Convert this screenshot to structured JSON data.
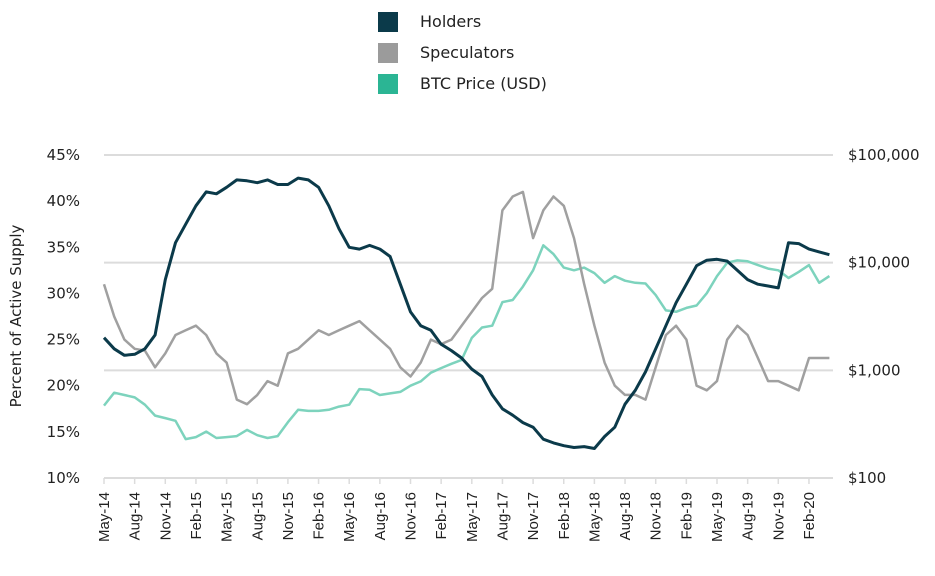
{
  "chart_data": {
    "type": "line",
    "title": "",
    "legend": {
      "placement": "top-center",
      "entries": [
        {
          "label": "Holders",
          "color": "#0b3a4a"
        },
        {
          "label": "Speculators",
          "color": "#9b9b9b"
        },
        {
          "label": "BTC Price (USD)",
          "color": "#2bb594"
        }
      ]
    },
    "xlabel": "",
    "ylabel": "Percent of Active Supply",
    "y2label": "",
    "x_tick_labels": [
      "May-14",
      "Aug-14",
      "Nov-14",
      "Feb-15",
      "May-15",
      "Aug-15",
      "Nov-15",
      "Feb-16",
      "May-16",
      "Aug-16",
      "Nov-16",
      "Feb-17",
      "May-17",
      "Aug-17",
      "Nov-17",
      "Feb-18",
      "May-18",
      "Aug-18",
      "Nov-18",
      "Feb-19",
      "May-19",
      "Aug-19",
      "Nov-19",
      "Feb-20"
    ],
    "y_tick_labels": [
      "10%",
      "15%",
      "20%",
      "25%",
      "30%",
      "35%",
      "40%",
      "45%"
    ],
    "y_ticks": [
      10,
      15,
      20,
      25,
      30,
      35,
      40,
      45
    ],
    "ylim": [
      10,
      45
    ],
    "y2_tick_labels": [
      "$100",
      "$1,000",
      "$10,000",
      "$100,000"
    ],
    "y2_ticks": [
      100,
      1000,
      10000,
      100000
    ],
    "y2lim": [
      100,
      100000
    ],
    "y2_scale": "log",
    "grid": "horizontal at right-axis ticks",
    "x_months": [
      "2014-05",
      "2014-06",
      "2014-07",
      "2014-08",
      "2014-09",
      "2014-10",
      "2014-11",
      "2014-12",
      "2015-01",
      "2015-02",
      "2015-03",
      "2015-04",
      "2015-05",
      "2015-06",
      "2015-07",
      "2015-08",
      "2015-09",
      "2015-10",
      "2015-11",
      "2015-12",
      "2016-01",
      "2016-02",
      "2016-03",
      "2016-04",
      "2016-05",
      "2016-06",
      "2016-07",
      "2016-08",
      "2016-09",
      "2016-10",
      "2016-11",
      "2016-12",
      "2017-01",
      "2017-02",
      "2017-03",
      "2017-04",
      "2017-05",
      "2017-06",
      "2017-07",
      "2017-08",
      "2017-09",
      "2017-10",
      "2017-11",
      "2017-12",
      "2018-01",
      "2018-02",
      "2018-03",
      "2018-04",
      "2018-05",
      "2018-06",
      "2018-07",
      "2018-08",
      "2018-09",
      "2018-10",
      "2018-11",
      "2018-12",
      "2019-01",
      "2019-02",
      "2019-03",
      "2019-04",
      "2019-05",
      "2019-06",
      "2019-07",
      "2019-08",
      "2019-09",
      "2019-10",
      "2019-11",
      "2019-12",
      "2020-01",
      "2020-02",
      "2020-03",
      "2020-04"
    ],
    "series": [
      {
        "name": "Holders",
        "axis": "left",
        "values": [
          25.2,
          24.0,
          23.3,
          23.4,
          24.0,
          25.5,
          31.5,
          35.5,
          37.5,
          39.5,
          41.0,
          40.8,
          41.5,
          42.3,
          42.2,
          42.0,
          42.3,
          41.8,
          41.8,
          42.5,
          42.3,
          41.5,
          39.5,
          37.0,
          35.0,
          34.8,
          35.2,
          34.8,
          34.0,
          31.0,
          28.0,
          26.5,
          26.0,
          24.5,
          23.8,
          23.0,
          21.8,
          21.0,
          19.0,
          17.5,
          16.8,
          16.0,
          15.5,
          14.2,
          13.8,
          13.5,
          13.3,
          13.4,
          13.2,
          14.5,
          15.5,
          18.0,
          19.5,
          21.5,
          24.0,
          26.5,
          29.0,
          31.0,
          33.0,
          33.6,
          33.7,
          33.5,
          32.5,
          31.5,
          31.0,
          30.8,
          30.6,
          35.5,
          35.4,
          34.8,
          34.5,
          34.2
        ]
      },
      {
        "name": "Speculators",
        "axis": "left",
        "values": [
          31.0,
          27.5,
          25.0,
          24.0,
          23.8,
          22.0,
          23.5,
          25.5,
          26.0,
          26.5,
          25.5,
          23.5,
          22.5,
          18.5,
          18.0,
          19.0,
          20.5,
          20.0,
          23.5,
          24.0,
          25.0,
          26.0,
          25.5,
          26.0,
          26.5,
          27.0,
          26.0,
          25.0,
          24.0,
          22.0,
          21.0,
          22.5,
          25.0,
          24.5,
          25.0,
          26.5,
          28.0,
          29.5,
          30.5,
          39.0,
          40.5,
          41.0,
          36.0,
          39.0,
          40.5,
          39.5,
          36.0,
          31.0,
          26.5,
          22.5,
          20.0,
          19.0,
          19.0,
          18.5,
          22.0,
          25.5,
          26.5,
          25.0,
          20.0,
          19.5,
          20.5,
          25.0,
          26.5,
          25.5,
          23.0,
          20.5,
          20.5,
          20.0,
          19.5,
          23.0,
          23.0,
          23.0
        ]
      },
      {
        "name": "BTC Price (USD)",
        "axis": "right",
        "values": [
          470,
          620,
          590,
          560,
          480,
          380,
          360,
          340,
          230,
          240,
          270,
          235,
          240,
          245,
          280,
          250,
          235,
          245,
          330,
          430,
          420,
          420,
          430,
          460,
          480,
          670,
          660,
          590,
          610,
          630,
          720,
          790,
          950,
          1050,
          1150,
          1250,
          2000,
          2500,
          2600,
          4300,
          4500,
          6000,
          8500,
          14500,
          12000,
          9000,
          8500,
          9000,
          8000,
          6500,
          7500,
          6800,
          6500,
          6400,
          5000,
          3600,
          3500,
          3800,
          4000,
          5200,
          7500,
          10000,
          10500,
          10300,
          9500,
          8800,
          8500,
          7200,
          8200,
          9500,
          6500,
          7500
        ]
      }
    ]
  }
}
